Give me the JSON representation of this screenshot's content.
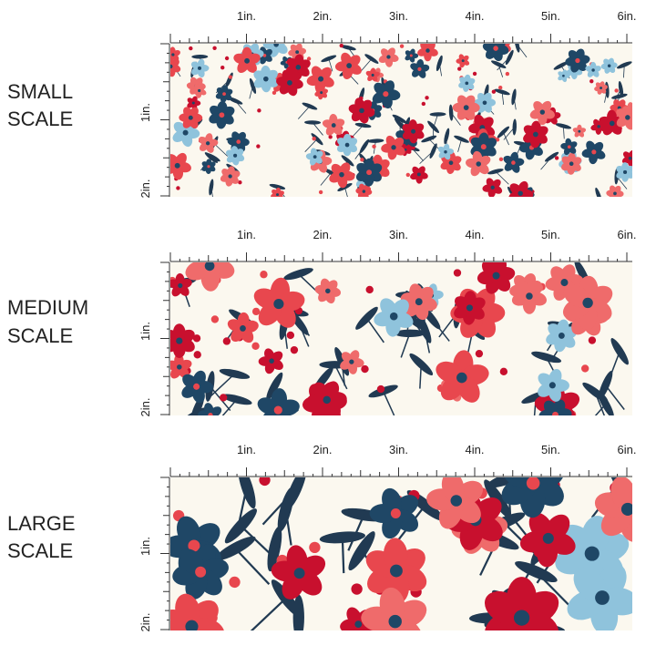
{
  "panels": [
    {
      "label": [
        "SMALL",
        "SCALE"
      ]
    },
    {
      "label": [
        "MEDIUM",
        "SCALE"
      ]
    },
    {
      "label": [
        "LARGE",
        "SCALE"
      ]
    }
  ],
  "ruler": {
    "top_labels": [
      "1in.",
      "2in.",
      "3in.",
      "4in.",
      "5in.",
      "6in."
    ],
    "side_labels": [
      "1in.",
      "2in."
    ]
  }
}
